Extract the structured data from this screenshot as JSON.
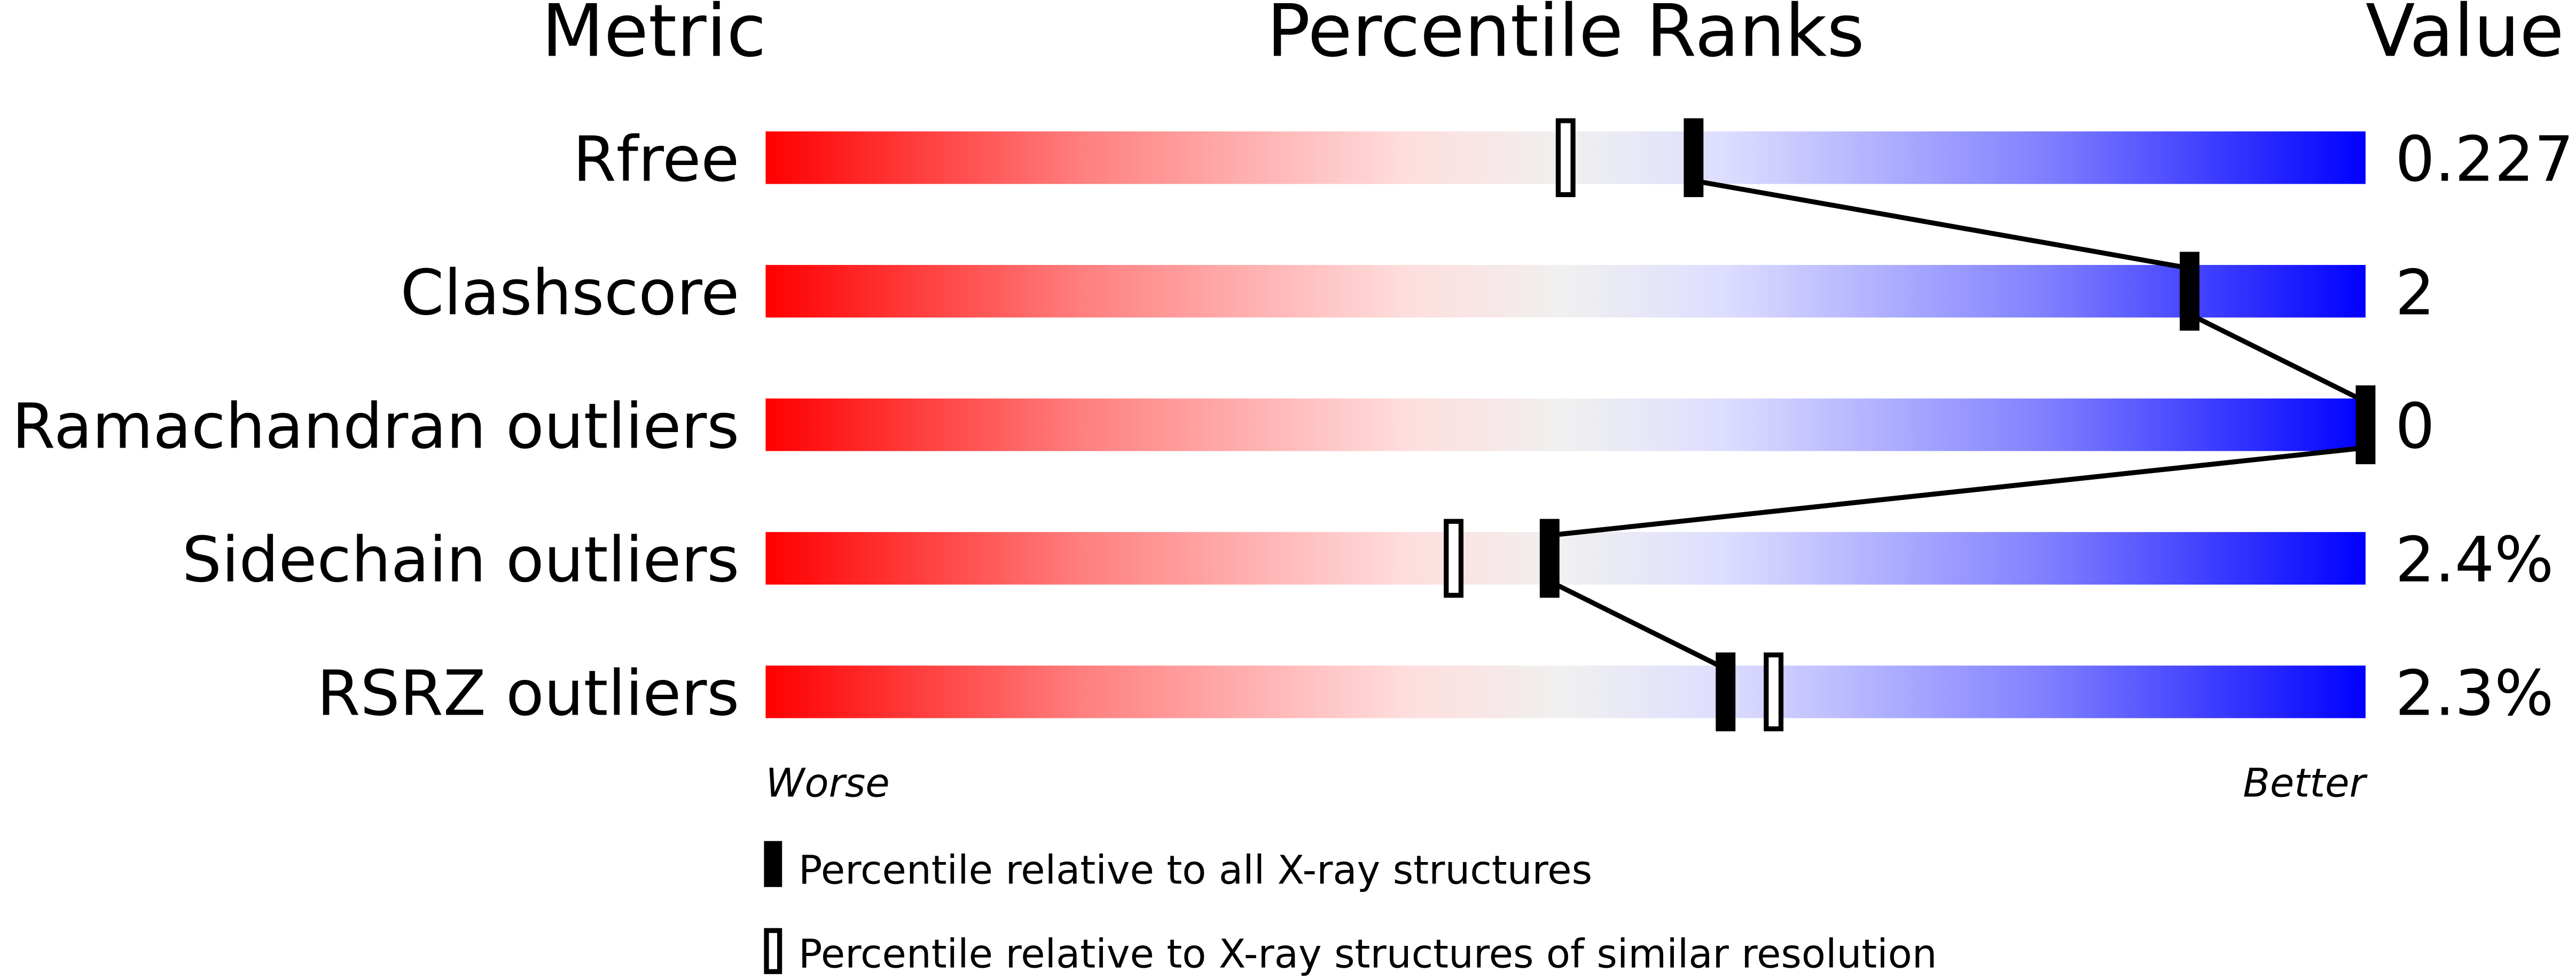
{
  "chart_data": {
    "type": "percentile-bar",
    "headers": {
      "metric": "Metric",
      "ranks": "Percentile Ranks",
      "value": "Value"
    },
    "axis": {
      "left_label": "Worse",
      "right_label": "Better",
      "xlim": [
        0,
        100
      ]
    },
    "colors": {
      "worse": "#ff0000",
      "middle": "#f0f0f0",
      "better": "#0000ff",
      "marker": "#000000"
    },
    "rows": [
      {
        "metric": "Rfree",
        "value": "0.227",
        "percentile_all": 58,
        "percentile_similar": 50
      },
      {
        "metric": "Clashscore",
        "value": "2",
        "percentile_all": 89,
        "percentile_similar": null
      },
      {
        "metric": "Ramachandran outliers",
        "value": "0",
        "percentile_all": 100,
        "percentile_similar": null
      },
      {
        "metric": "Sidechain outliers",
        "value": "2.4%",
        "percentile_all": 49,
        "percentile_similar": 43
      },
      {
        "metric": "RSRZ outliers",
        "value": "2.3%",
        "percentile_all": 60,
        "percentile_similar": 63
      }
    ],
    "legend": {
      "all": "Percentile relative to all X-ray structures",
      "similar": "Percentile relative to X-ray structures of similar resolution"
    }
  }
}
